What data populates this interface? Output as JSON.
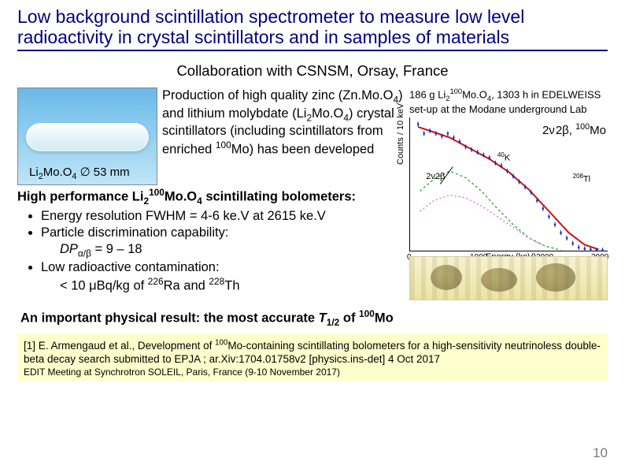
{
  "title": "Low background scintillation spectrometer to measure low level radioactivity in crystal scintillators and in samples of materials",
  "collab": "Collaboration with CSNSM, Orsay, France",
  "crystal_caption_html": "Li<sub>2</sub>Mo.O<sub>4</sub> ∅ 53 mm",
  "production_html": "Production of high quality zinc (Zn.Mo.O<sub>4</sub>) and lithium molybdate (Li<sub>2</sub>Mo.O<sub>4</sub>) crystal scintillators (including scintillators from enriched <sup>100</sup>Mo) has been developed",
  "hp_line_html": "High performance Li<sub>2</sub><sup>100</sup>Mo.O<sub>4</sub> scintillating bolometers:",
  "bullets": [
    "Energy resolution FWHM = 4-6 ke.V at 2615 ke.V",
    "Particle discrimination capability:",
    "Low radioactive contamination:"
  ],
  "bullet2_sub_html": "<i>DP</i><sub>α/β</sub> = 9 – 18",
  "bullet3_sub_html": "&lt; 10 μBq/kg of <sup>226</sup>Ra and <sup>228</sup>Th",
  "right_caption_html": "186 g Li<sub>2</sub><sup>100</sup>Mo.O<sub>4</sub>, 1303 h in EDELWEISS set-up at the Modane underground Lab",
  "spectrum": {
    "annotation_html": "2ν<span style='letter-spacing:-2px'>&thinsp;</span>2β, <sup>100</sup>Mo",
    "x_label": "Energy (keV)",
    "y_label": "Counts / 10 keV",
    "x_ticks": [
      "0",
      "1000",
      "2000",
      "3000"
    ],
    "y_range_log": [
      0.3,
      500
    ],
    "colors": {
      "data": "#1030d0",
      "fit_total": "#d01010",
      "comp1": "#18a018",
      "comp2": "#d060d0",
      "bg_series": "#1030d0"
    },
    "curves": {
      "data_pts": [
        [
          0.04,
          0.05
        ],
        [
          0.07,
          0.12
        ],
        [
          0.1,
          0.1
        ],
        [
          0.13,
          0.12
        ],
        [
          0.16,
          0.14
        ],
        [
          0.19,
          0.12
        ],
        [
          0.22,
          0.15
        ],
        [
          0.25,
          0.18
        ],
        [
          0.28,
          0.22
        ],
        [
          0.31,
          0.24
        ],
        [
          0.34,
          0.26
        ],
        [
          0.37,
          0.28
        ],
        [
          0.4,
          0.3
        ],
        [
          0.43,
          0.34
        ],
        [
          0.46,
          0.36
        ],
        [
          0.49,
          0.4
        ],
        [
          0.52,
          0.44
        ],
        [
          0.55,
          0.48
        ],
        [
          0.58,
          0.52
        ],
        [
          0.61,
          0.56
        ],
        [
          0.64,
          0.62
        ],
        [
          0.67,
          0.68
        ],
        [
          0.7,
          0.74
        ],
        [
          0.73,
          0.8
        ],
        [
          0.76,
          0.86
        ],
        [
          0.79,
          0.9
        ],
        [
          0.82,
          0.94
        ],
        [
          0.85,
          0.97
        ],
        [
          0.88,
          0.98
        ],
        [
          0.91,
          0.985
        ],
        [
          0.94,
          0.99
        ],
        [
          0.97,
          0.99
        ]
      ],
      "fit_total": [
        [
          0.04,
          0.07
        ],
        [
          0.1,
          0.1
        ],
        [
          0.2,
          0.15
        ],
        [
          0.3,
          0.23
        ],
        [
          0.4,
          0.31
        ],
        [
          0.5,
          0.41
        ],
        [
          0.6,
          0.54
        ],
        [
          0.7,
          0.7
        ],
        [
          0.8,
          0.86
        ],
        [
          0.88,
          0.95
        ],
        [
          0.95,
          0.985
        ]
      ],
      "comp1": [
        [
          0.05,
          0.55
        ],
        [
          0.12,
          0.46
        ],
        [
          0.2,
          0.4
        ],
        [
          0.28,
          0.45
        ],
        [
          0.36,
          0.55
        ],
        [
          0.44,
          0.68
        ],
        [
          0.52,
          0.8
        ],
        [
          0.6,
          0.9
        ],
        [
          0.68,
          0.96
        ],
        [
          0.76,
          0.99
        ]
      ],
      "comp2": [
        [
          0.05,
          0.7
        ],
        [
          0.12,
          0.62
        ],
        [
          0.2,
          0.58
        ],
        [
          0.28,
          0.6
        ],
        [
          0.36,
          0.66
        ],
        [
          0.44,
          0.74
        ],
        [
          0.52,
          0.82
        ],
        [
          0.6,
          0.9
        ],
        [
          0.68,
          0.96
        ]
      ]
    },
    "markers": {
      "2b_arrow": {
        "x": 0.12,
        "y": 0.45,
        "label": "2ν2β"
      },
      "k40": {
        "x": 0.48,
        "y": 0.3,
        "label": "<sup>40</sup>K"
      },
      "tl208": {
        "x": 0.86,
        "y": 0.46,
        "label": "<sup>208</sup>Tl"
      }
    }
  },
  "result_html": "An important physical result: the most accurate <i>T</i><sub>1/2</sub> of <sup>100</sup>Mo",
  "reference_html": "[1] E. Armengaud et al., Development of <sup>100</sup>Mo-containing scintillating bolometers for a high-sensitivity neutrinoless double-beta decay search submitted to EPJA ; ar.Xiv:1704.01758v2 [physics.ins-det] 4 Oct 2017",
  "footer": "EDIT Meeting at Synchrotron SOLEIL, Paris, France (9-10 November 2017)",
  "page_number": "10",
  "colors": {
    "title": "#000080",
    "refbg": "#ffffcc",
    "pagenum": "#7a7a7a"
  }
}
